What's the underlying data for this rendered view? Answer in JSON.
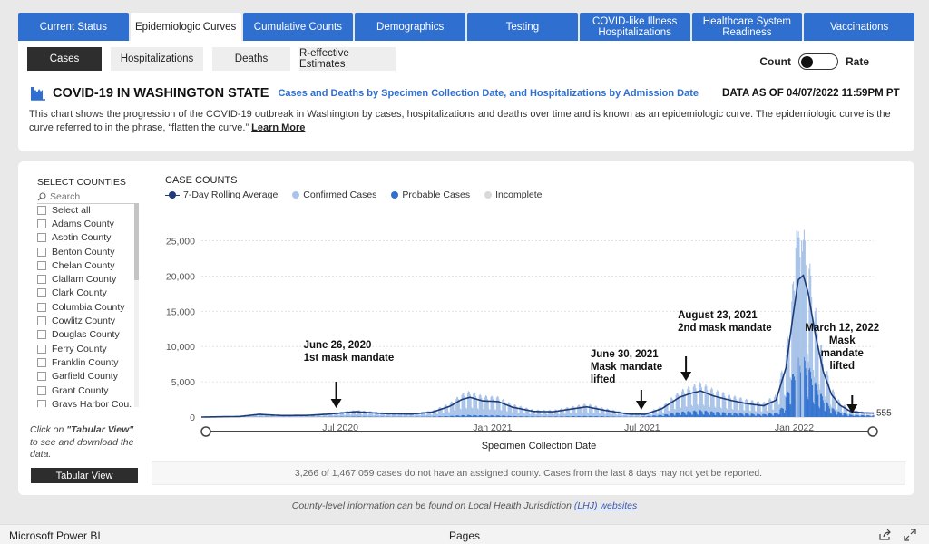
{
  "tabs": [
    "Current Status",
    "Epidemiologic Curves",
    "Cumulative Counts",
    "Demographics",
    "Testing",
    "COVID-like Illness Hospitalizations",
    "Healthcare System Readiness",
    "Vaccinations"
  ],
  "active_tab": 1,
  "subtabs": [
    "Cases",
    "Hospitalizations",
    "Deaths",
    "R-effective Estimates"
  ],
  "active_subtab": 0,
  "toggle": {
    "left": "Count",
    "right": "Rate",
    "state": "Count"
  },
  "header": {
    "title": "COVID-19 IN WASHINGTON STATE",
    "subtitle": "Cases and Deaths by Specimen Collection Date, and Hospitalizations by Admission Date",
    "as_of": "DATA AS OF 04/07/2022 11:59PM PT",
    "description": "This chart shows the progression of the COVID-19 outbreak in Washington by cases, hospitalizations and deaths over time and is known as an epidemiologic curve. The epidemiologic curve is the curve referred to in the phrase, “flatten the curve.”",
    "learn_more": "Learn More"
  },
  "counties": {
    "title": "SELECT COUNTIES",
    "search_placeholder": "Search",
    "items": [
      "Select all",
      "Adams County",
      "Asotin County",
      "Benton County",
      "Chelan County",
      "Clallam County",
      "Clark County",
      "Columbia County",
      "Cowlitz County",
      "Douglas County",
      "Ferry County",
      "Franklin County",
      "Garfield County",
      "Grant County",
      "Grays Harbor Cou..."
    ]
  },
  "tabular": {
    "note_prefix": "Click on ",
    "note_bold": "\"Tabular View\"",
    "note_suffix": " to see and download the data.",
    "button": "Tabular View"
  },
  "chart_data": {
    "type": "bar",
    "title": "CASE COUNTS",
    "xlabel": "Specimen Collection Date",
    "ylabel": "",
    "ylim": [
      0,
      27000
    ],
    "yticks": [
      0,
      5000,
      10000,
      15000,
      20000,
      25000
    ],
    "ytick_labels": [
      "0",
      "5,000",
      "10,000",
      "15,000",
      "20,000",
      "25,000"
    ],
    "xrange": [
      "2020-01-15",
      "2022-04-07"
    ],
    "xticks": [
      {
        "date": "2020-07-01",
        "label": "Jul 2020"
      },
      {
        "date": "2021-01-01",
        "label": "Jan 2021"
      },
      {
        "date": "2021-07-01",
        "label": "Jul 2021"
      },
      {
        "date": "2022-01-01",
        "label": "Jan 2022"
      }
    ],
    "legend": [
      "7-Day Rolling Average",
      "Confirmed Cases",
      "Probable Cases",
      "Incomplete"
    ],
    "colors": {
      "rolling": "#1e3a78",
      "confirmed": "#a9c4e8",
      "probable": "#2e6fcf",
      "incomplete": "#d9d9d9"
    },
    "rolling_average": [
      [
        "2020-01-15",
        0
      ],
      [
        "2020-03-01",
        80
      ],
      [
        "2020-03-25",
        380
      ],
      [
        "2020-04-20",
        220
      ],
      [
        "2020-05-20",
        230
      ],
      [
        "2020-06-15",
        400
      ],
      [
        "2020-07-20",
        760
      ],
      [
        "2020-08-25",
        480
      ],
      [
        "2020-09-25",
        420
      ],
      [
        "2020-10-20",
        700
      ],
      [
        "2020-11-10",
        1500
      ],
      [
        "2020-11-25",
        2500
      ],
      [
        "2020-12-05",
        2800
      ],
      [
        "2020-12-20",
        2300
      ],
      [
        "2021-01-08",
        2200
      ],
      [
        "2021-01-25",
        1400
      ],
      [
        "2021-02-20",
        800
      ],
      [
        "2021-03-15",
        750
      ],
      [
        "2021-04-10",
        1200
      ],
      [
        "2021-04-25",
        1450
      ],
      [
        "2021-05-15",
        1000
      ],
      [
        "2021-06-15",
        420
      ],
      [
        "2021-07-05",
        400
      ],
      [
        "2021-07-25",
        1200
      ],
      [
        "2021-08-15",
        2800
      ],
      [
        "2021-08-30",
        3400
      ],
      [
        "2021-09-10",
        3700
      ],
      [
        "2021-09-25",
        3000
      ],
      [
        "2021-10-15",
        2400
      ],
      [
        "2021-11-05",
        1900
      ],
      [
        "2021-11-25",
        1600
      ],
      [
        "2021-12-10",
        2400
      ],
      [
        "2021-12-22",
        7000
      ],
      [
        "2021-12-30",
        14000
      ],
      [
        "2022-01-06",
        19500
      ],
      [
        "2022-01-12",
        20100
      ],
      [
        "2022-01-18",
        17500
      ],
      [
        "2022-01-26",
        12000
      ],
      [
        "2022-02-05",
        6500
      ],
      [
        "2022-02-15",
        3200
      ],
      [
        "2022-02-25",
        1700
      ],
      [
        "2022-03-10",
        800
      ],
      [
        "2022-03-25",
        600
      ],
      [
        "2022-04-07",
        555
      ]
    ],
    "last_value_label": "555",
    "annotations": [
      {
        "date": "2020-06-26",
        "lines": [
          "June 26, 2020",
          "1st mask mandate"
        ],
        "align": "left"
      },
      {
        "date": "2021-06-30",
        "lines": [
          "June 30, 2021",
          "Mask mandate",
          "lifted"
        ],
        "align": "left"
      },
      {
        "date": "2021-08-23",
        "lines": [
          "August 23, 2021",
          "2nd mask mandate"
        ],
        "align": "left"
      },
      {
        "date": "2022-03-12",
        "lines": [
          "March 12, 2022",
          "Mask",
          "mandate",
          "lifted"
        ],
        "align": "center"
      }
    ]
  },
  "footnote": "3,266 of 1,467,059 cases do not have an assigned county. Cases from the last 8 days may not yet be reported.",
  "lhj_note": {
    "prefix": "County-level information can be found on Local Health Jurisdiction ",
    "link": "(LHJ) websites"
  },
  "bottom_bar": {
    "brand": "Microsoft Power BI",
    "pages": "Pages"
  }
}
